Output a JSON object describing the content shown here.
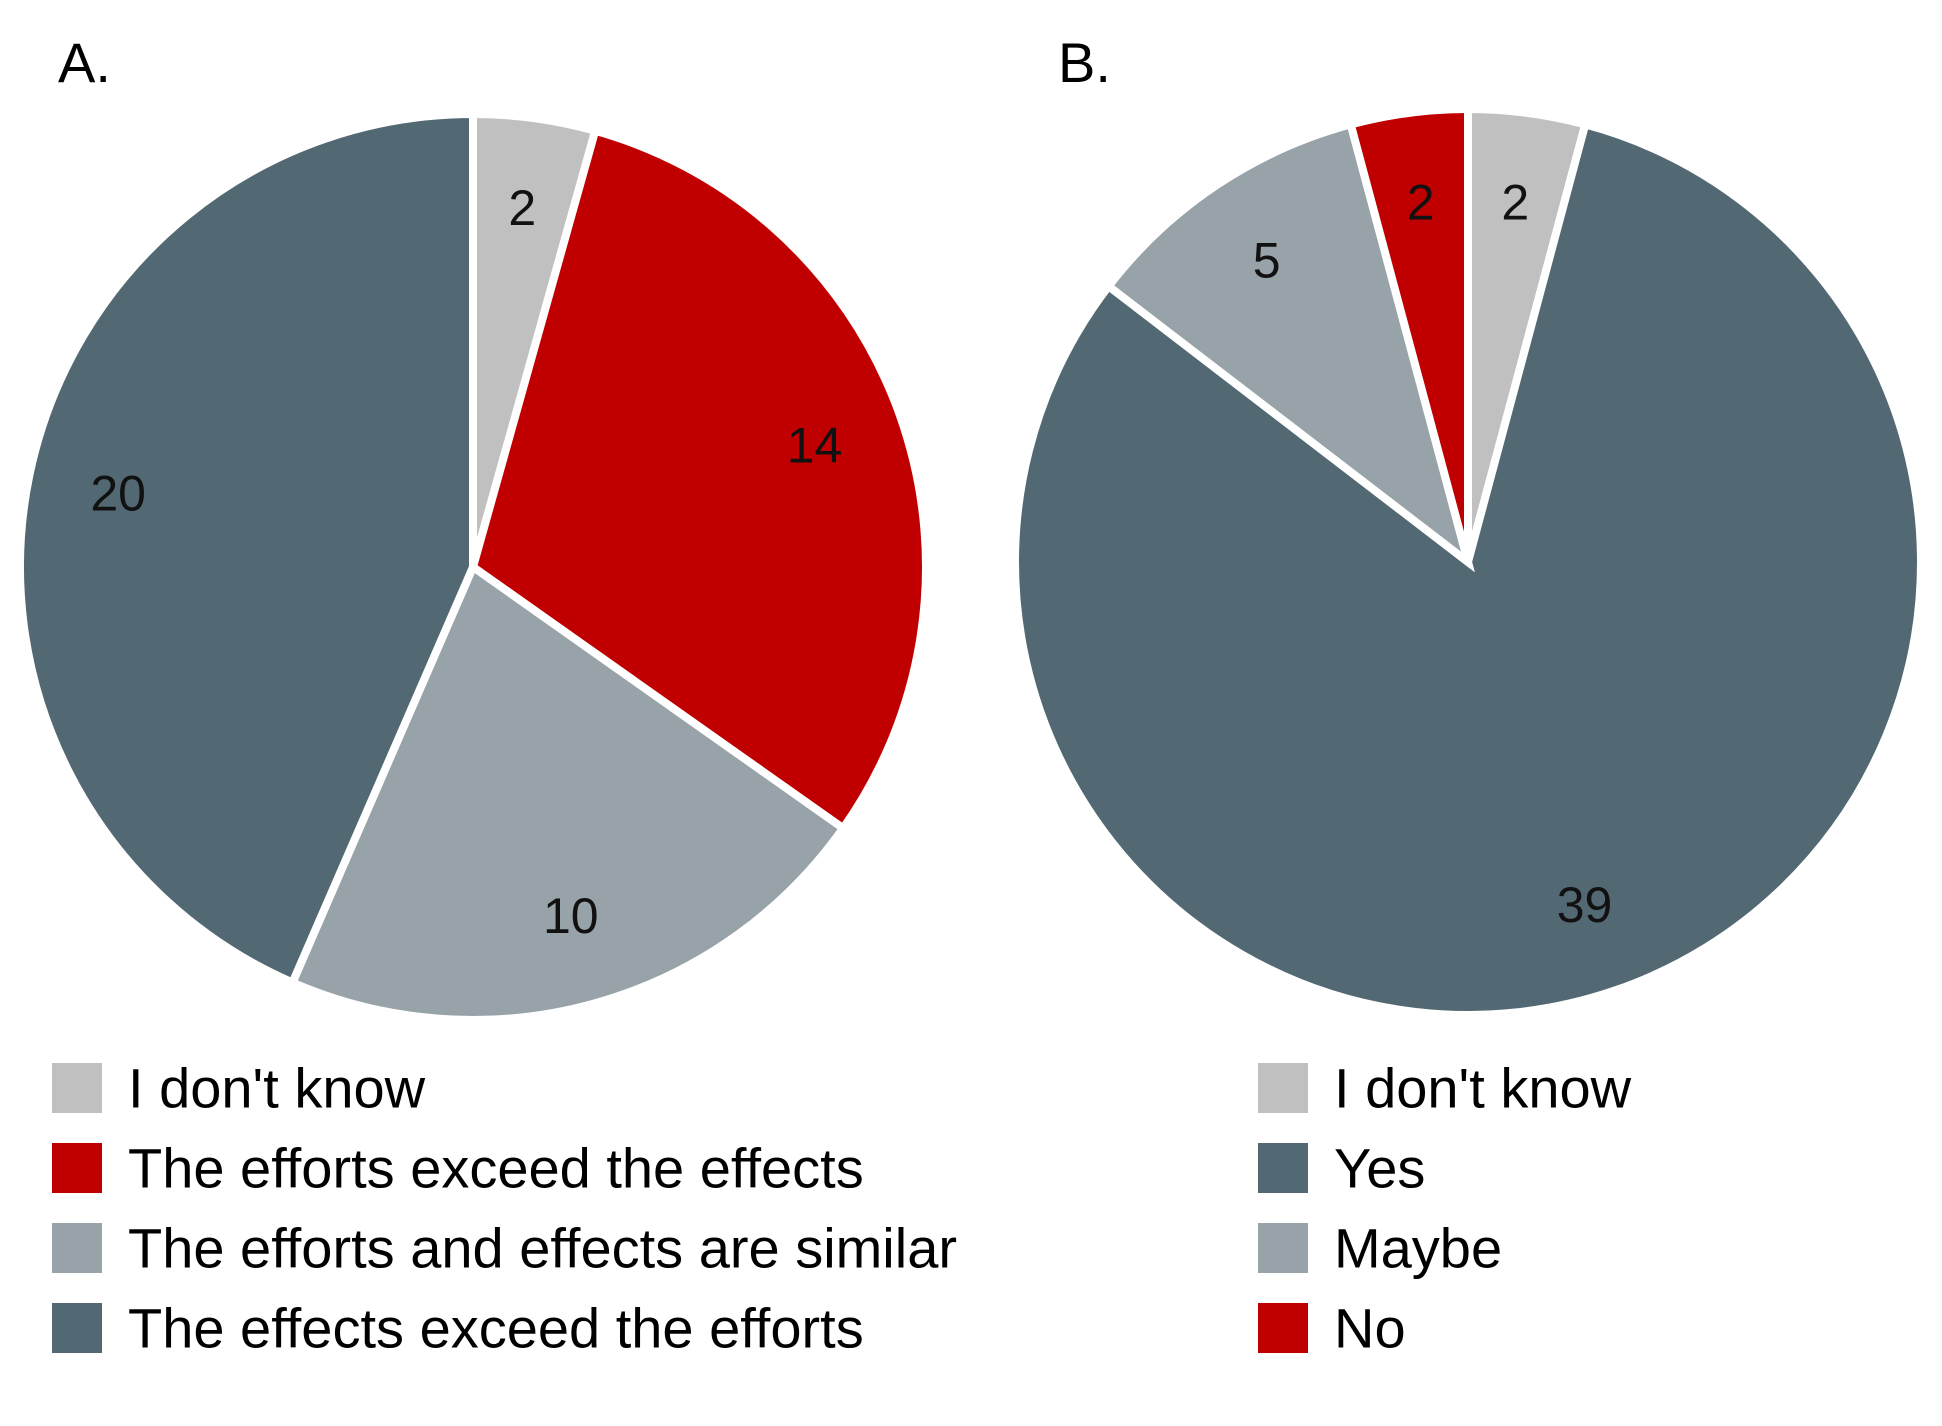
{
  "chart_data": [
    {
      "type": "pie",
      "title": "A.",
      "slices": [
        {
          "label": "I don't know",
          "value": 2,
          "color": "#c0c0c0"
        },
        {
          "label": "The efforts exceed the effects",
          "value": 14,
          "color": "#c00000"
        },
        {
          "label": "The efforts and effects are similar",
          "value": 10,
          "color": "#97a3a9"
        },
        {
          "label": "The effects exceed the efforts",
          "value": 20,
          "color": "#526873"
        }
      ],
      "start": "12 o'clock",
      "direction": "clockwise",
      "legend_position": "bottom-left"
    },
    {
      "type": "pie",
      "title": "B.",
      "slices": [
        {
          "label": "I don't know",
          "value": 2,
          "color": "#c0c0c0"
        },
        {
          "label": "Yes",
          "value": 39,
          "color": "#526873"
        },
        {
          "label": "Maybe",
          "value": 5,
          "color": "#97a3a9"
        },
        {
          "label": "No",
          "value": 2,
          "color": "#c00000"
        }
      ],
      "start": "12 o'clock",
      "direction": "clockwise",
      "legend_position": "bottom-right"
    }
  ]
}
